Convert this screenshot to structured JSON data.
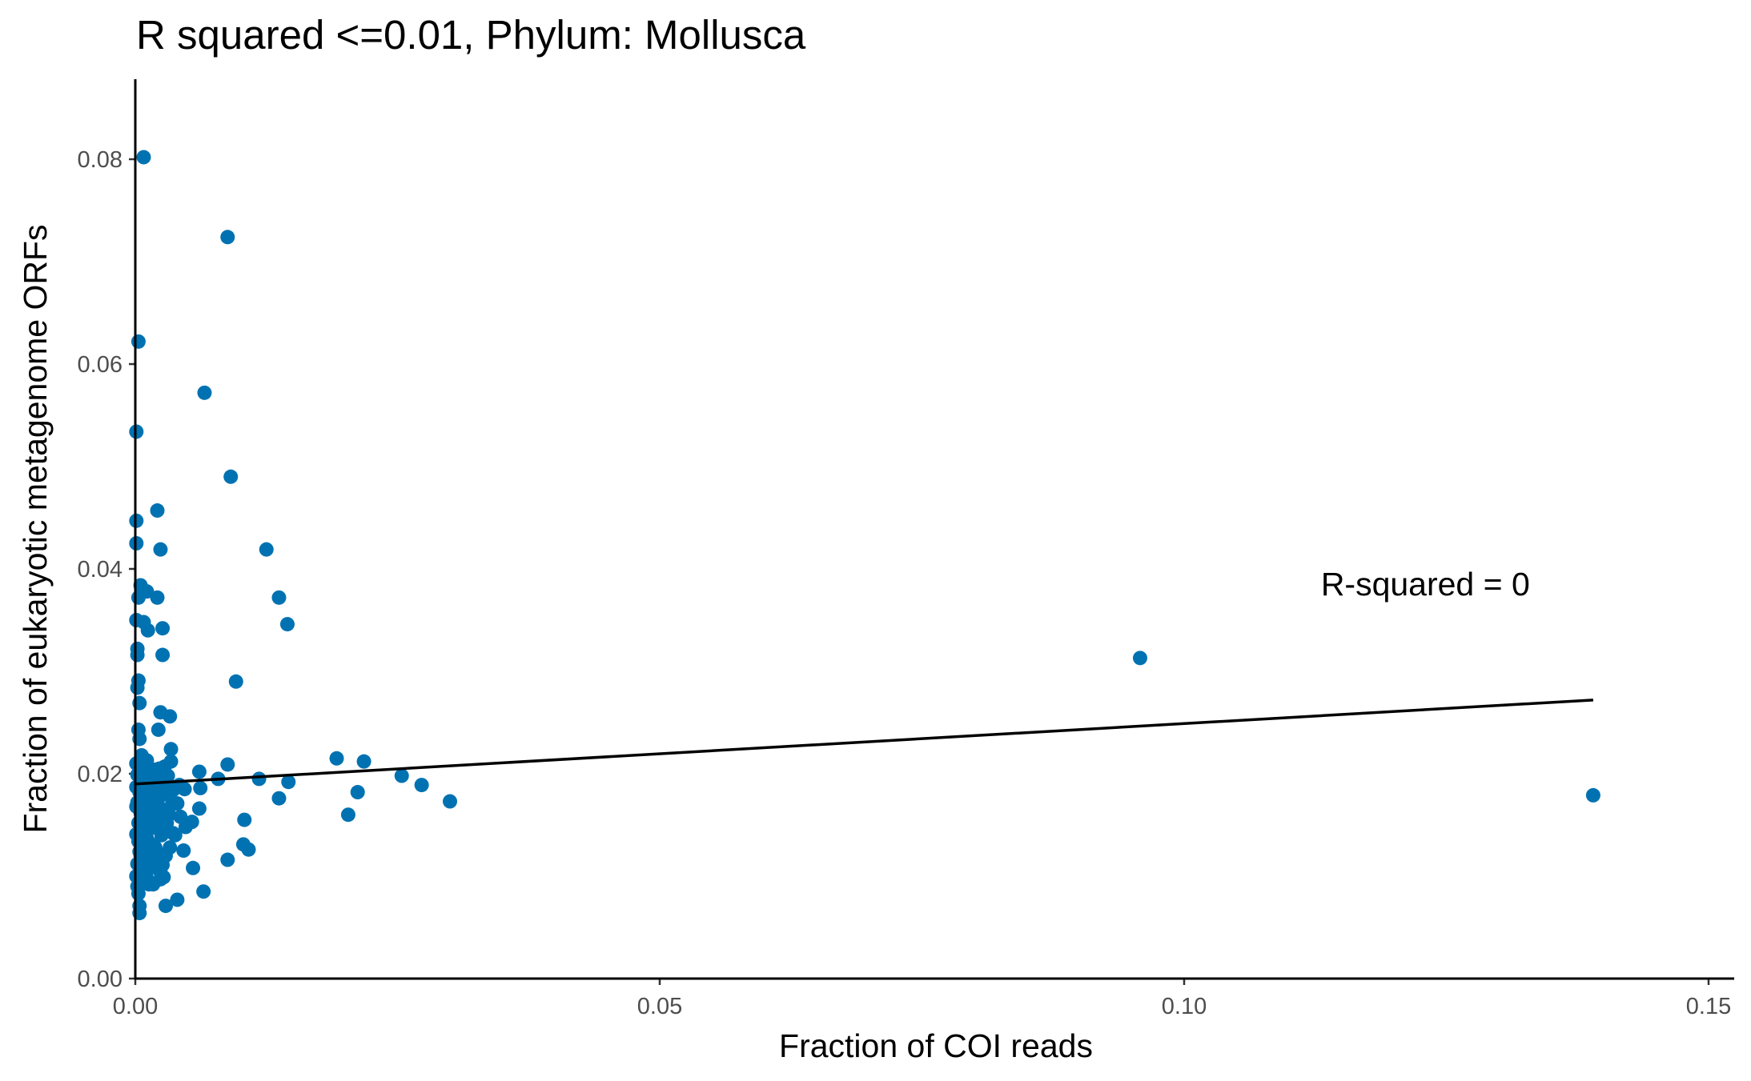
{
  "chart_data": {
    "type": "scatter",
    "title": "R squared <=0.01, Phylum:  Mollusca",
    "xlabel": "Fraction of COI reads",
    "ylabel": "Fraction of eukaryotic metagenome ORFs",
    "xlim": [
      0,
      0.153
    ],
    "ylim": [
      0,
      0.088
    ],
    "x_ticks": [
      0.0,
      0.05,
      0.1,
      0.15
    ],
    "x_tick_labels": [
      "0.00",
      "0.05",
      "0.10",
      "0.15"
    ],
    "y_ticks": [
      0.0,
      0.02,
      0.04,
      0.06,
      0.08
    ],
    "y_tick_labels": [
      "0.00",
      "0.02",
      "0.04",
      "0.06",
      "0.08"
    ],
    "grid": false,
    "point_color": "#0072B2",
    "annotation": {
      "text": "R-squared =  0",
      "x": 0.123,
      "y": 0.0385
    },
    "fit_line": {
      "x": [
        0,
        0.139
      ],
      "y": [
        0.019,
        0.0272
      ]
    },
    "points": [
      [
        0.0008,
        0.0802
      ],
      [
        0.0088,
        0.0724
      ],
      [
        0.0003,
        0.0622
      ],
      [
        0.0066,
        0.0572
      ],
      [
        0.0001,
        0.0534
      ],
      [
        0.0091,
        0.049
      ],
      [
        0.0021,
        0.0457
      ],
      [
        0.0001,
        0.0447
      ],
      [
        0.0024,
        0.0419
      ],
      [
        0.0001,
        0.0425
      ],
      [
        0.0125,
        0.0419
      ],
      [
        0.0005,
        0.0384
      ],
      [
        0.0011,
        0.0378
      ],
      [
        0.0021,
        0.0372
      ],
      [
        0.0003,
        0.0372
      ],
      [
        0.0137,
        0.0372
      ],
      [
        0.0008,
        0.0348
      ],
      [
        0.0026,
        0.0342
      ],
      [
        0.0012,
        0.034
      ],
      [
        0.0145,
        0.0346
      ],
      [
        0.0001,
        0.035
      ],
      [
        0.0002,
        0.0322
      ],
      [
        0.0002,
        0.0316
      ],
      [
        0.0026,
        0.0316
      ],
      [
        0.0958,
        0.0313
      ],
      [
        0.0003,
        0.0291
      ],
      [
        0.0096,
        0.029
      ],
      [
        0.0002,
        0.0284
      ],
      [
        0.0004,
        0.0269
      ],
      [
        0.0024,
        0.026
      ],
      [
        0.0033,
        0.0256
      ],
      [
        0.0003,
        0.0243
      ],
      [
        0.0022,
        0.0243
      ],
      [
        0.0004,
        0.0234
      ],
      [
        0.0034,
        0.0224
      ],
      [
        0.0034,
        0.0212
      ],
      [
        0.0004,
        0.0205
      ],
      [
        0.0014,
        0.0202
      ],
      [
        0.0031,
        0.0198
      ],
      [
        0.0023,
        0.0205
      ],
      [
        0.0061,
        0.0202
      ],
      [
        0.0088,
        0.0209
      ],
      [
        0.0079,
        0.0195
      ],
      [
        0.0118,
        0.0195
      ],
      [
        0.0146,
        0.0192
      ],
      [
        0.0192,
        0.0215
      ],
      [
        0.0218,
        0.0212
      ],
      [
        0.0254,
        0.0198
      ],
      [
        0.0273,
        0.0189
      ],
      [
        0.03,
        0.0173
      ],
      [
        0.0212,
        0.0182
      ],
      [
        0.139,
        0.0179
      ],
      [
        0.0203,
        0.016
      ],
      [
        0.0137,
        0.0176
      ],
      [
        0.0062,
        0.0186
      ],
      [
        0.0042,
        0.0189
      ],
      [
        0.0047,
        0.0185
      ],
      [
        0.0061,
        0.0166
      ],
      [
        0.0043,
        0.0158
      ],
      [
        0.0054,
        0.0153
      ],
      [
        0.0104,
        0.0155
      ],
      [
        0.0048,
        0.0148
      ],
      [
        0.0038,
        0.014
      ],
      [
        0.0103,
        0.0131
      ],
      [
        0.0108,
        0.0126
      ],
      [
        0.0046,
        0.0125
      ],
      [
        0.0088,
        0.0116
      ],
      [
        0.0029,
        0.012
      ],
      [
        0.0055,
        0.0108
      ],
      [
        0.0065,
        0.0085
      ],
      [
        0.004,
        0.0077
      ],
      [
        0.0029,
        0.0071
      ],
      [
        0.0004,
        0.0064
      ],
      [
        0.0004,
        0.0071
      ],
      [
        0.0003,
        0.0083
      ],
      [
        0.0017,
        0.0092
      ],
      [
        0.0024,
        0.0097
      ],
      [
        0.0027,
        0.0099
      ],
      [
        0.0011,
        0.0098
      ],
      [
        0.0024,
        0.0104
      ],
      [
        0.0006,
        0.0105
      ],
      [
        0.0014,
        0.0108
      ],
      [
        0.0002,
        0.0112
      ],
      [
        0.0009,
        0.0115
      ],
      [
        0.0021,
        0.0118
      ],
      [
        0.0027,
        0.0121
      ],
      [
        0.0004,
        0.0124
      ],
      [
        0.0013,
        0.0126
      ],
      [
        0.0033,
        0.0128
      ],
      [
        0.0016,
        0.0131
      ],
      [
        0.0003,
        0.0134
      ],
      [
        0.0011,
        0.0137
      ],
      [
        0.0025,
        0.014
      ],
      [
        0.0036,
        0.0142
      ],
      [
        0.0006,
        0.0145
      ],
      [
        0.0015,
        0.0147
      ],
      [
        0.0027,
        0.015
      ],
      [
        0.0003,
        0.0152
      ],
      [
        0.001,
        0.0155
      ],
      [
        0.0019,
        0.0157
      ],
      [
        0.0032,
        0.016
      ],
      [
        0.0005,
        0.0162
      ],
      [
        0.0013,
        0.0165
      ],
      [
        0.0023,
        0.0167
      ],
      [
        0.0035,
        0.017
      ],
      [
        0.0002,
        0.0172
      ],
      [
        0.0008,
        0.0175
      ],
      [
        0.0017,
        0.0177
      ],
      [
        0.0029,
        0.018
      ],
      [
        0.0004,
        0.0182
      ],
      [
        0.0012,
        0.0185
      ],
      [
        0.0021,
        0.0187
      ],
      [
        0.0031,
        0.019
      ],
      [
        0.0006,
        0.0192
      ],
      [
        0.0015,
        0.0195
      ],
      [
        0.0025,
        0.0197
      ],
      [
        0.0002,
        0.0199
      ],
      [
        0.0009,
        0.0201
      ],
      [
        0.0019,
        0.0204
      ],
      [
        0.0028,
        0.0207
      ],
      [
        0.0001,
        0.021
      ],
      [
        0.0011,
        0.0213
      ],
      [
        0.0006,
        0.0218
      ],
      [
        0.0017,
        0.0194
      ],
      [
        0.0036,
        0.0184
      ],
      [
        0.004,
        0.0171
      ],
      [
        0.0001,
        0.01
      ],
      [
        0.0002,
        0.009
      ],
      [
        0.0001,
        0.0141
      ],
      [
        0.0001,
        0.0168
      ],
      [
        0.0001,
        0.0187
      ],
      [
        0.0007,
        0.011
      ],
      [
        0.0019,
        0.0128
      ],
      [
        0.003,
        0.0152
      ],
      [
        0.0008,
        0.0139
      ],
      [
        0.0022,
        0.0176
      ],
      [
        0.0013,
        0.0092
      ],
      [
        0.0005,
        0.012
      ],
      [
        0.0026,
        0.0111
      ],
      [
        0.0016,
        0.0161
      ]
    ]
  }
}
